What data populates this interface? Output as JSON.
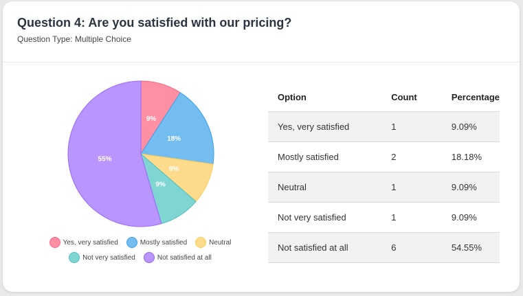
{
  "question": {
    "title": "Question 4: Are you satisfied with our pricing?",
    "type_label": "Question Type: Multiple Choice"
  },
  "table": {
    "headers": [
      "Option",
      "Count",
      "Percentage"
    ],
    "rows": [
      {
        "option": "Yes, very satisfied",
        "count": "1",
        "percentage": "9.09%"
      },
      {
        "option": "Mostly satisfied",
        "count": "2",
        "percentage": "18.18%"
      },
      {
        "option": "Neutral",
        "count": "1",
        "percentage": "9.09%"
      },
      {
        "option": "Not very satisfied",
        "count": "1",
        "percentage": "9.09%"
      },
      {
        "option": "Not satisfied at all",
        "count": "6",
        "percentage": "54.55%"
      }
    ]
  },
  "chart_data": {
    "type": "pie",
    "categories": [
      "Yes, very satisfied",
      "Mostly satisfied",
      "Neutral",
      "Not very satisfied",
      "Not satisfied at all"
    ],
    "values": [
      1,
      2,
      1,
      1,
      6
    ],
    "slice_labels": [
      "9%",
      "18%",
      "9%",
      "9%",
      "55%"
    ],
    "colors": [
      "#ff8fa3",
      "#74bdf1",
      "#fedb8c",
      "#7fd5d2",
      "#b995ff"
    ],
    "border_colors": [
      "#ff6384",
      "#36a2eb",
      "#ffcd56",
      "#4bc0c0",
      "#9966ff"
    ],
    "legend_position": "bottom",
    "start_angle": "top, clockwise"
  }
}
